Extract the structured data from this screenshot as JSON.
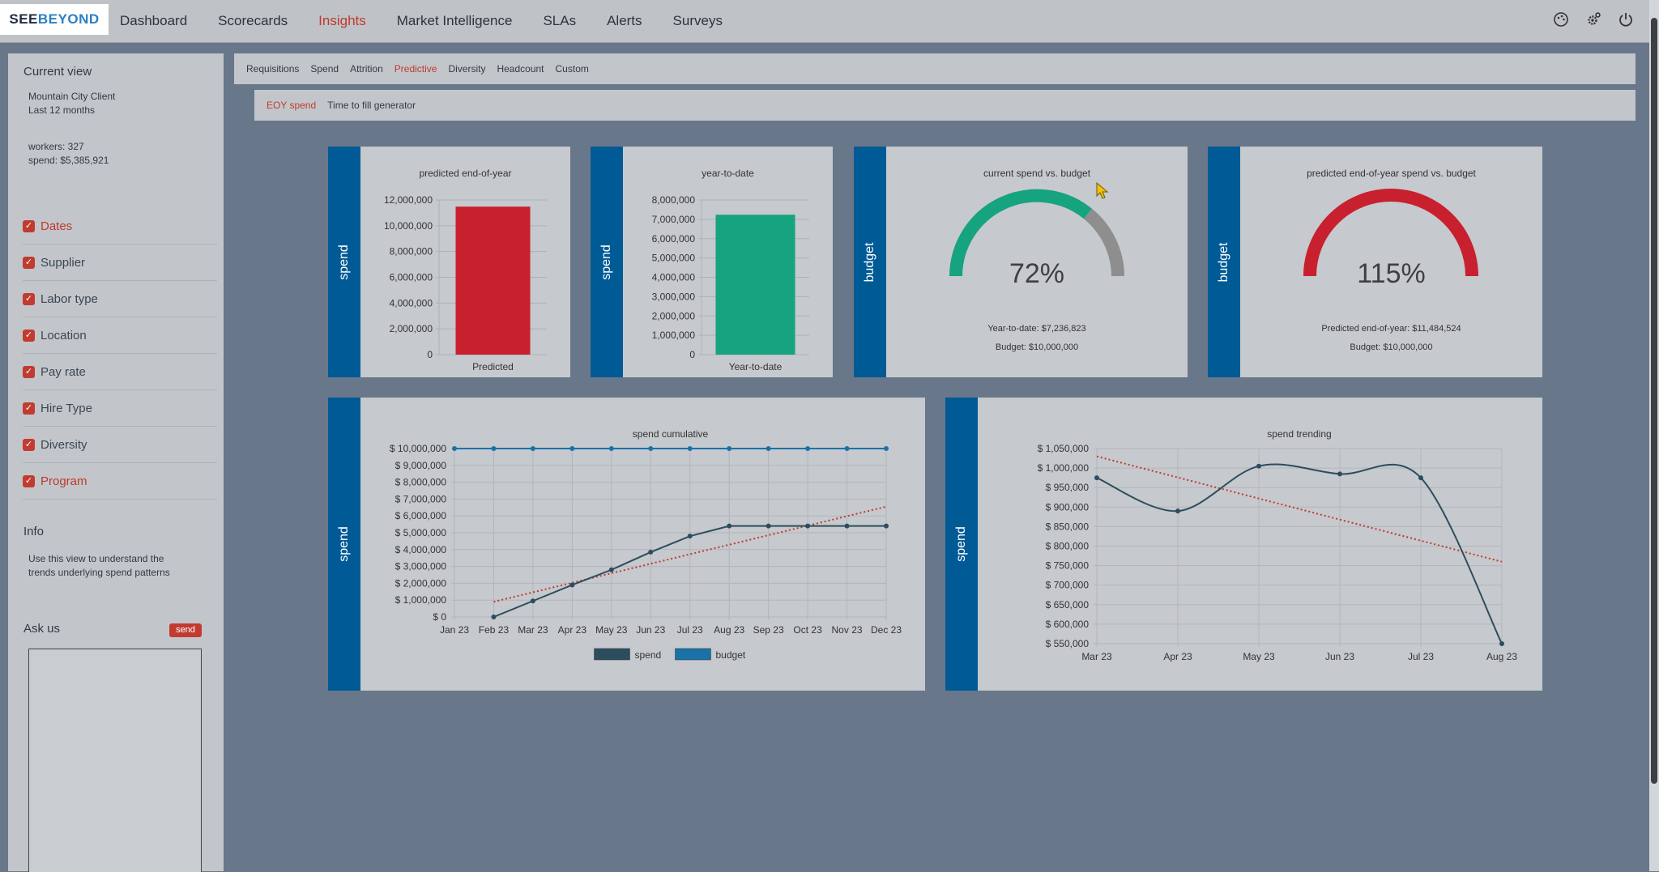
{
  "brand": {
    "see": "SEE",
    "beyond": "BEYOND"
  },
  "nav": {
    "items": [
      "Dashboard",
      "Scorecards",
      "Insights",
      "Market Intelligence",
      "SLAs",
      "Alerts",
      "Surveys"
    ],
    "active": "Insights",
    "icons": [
      "palette-icon",
      "settings-icon",
      "power-icon"
    ]
  },
  "sidebar": {
    "current_view_title": "Current view",
    "client": "Mountain City Client",
    "period": "Last 12 months",
    "workers": "workers: 327",
    "spend": "spend: $5,385,921",
    "filters": [
      {
        "label": "Dates",
        "highlight": true
      },
      {
        "label": "Supplier",
        "highlight": false
      },
      {
        "label": "Labor type",
        "highlight": false
      },
      {
        "label": "Location",
        "highlight": false
      },
      {
        "label": "Pay rate",
        "highlight": false
      },
      {
        "label": "Hire Type",
        "highlight": false
      },
      {
        "label": "Diversity",
        "highlight": false
      },
      {
        "label": "Program",
        "highlight": true
      }
    ],
    "info_title": "Info",
    "info_text_1": "Use this view to understand the",
    "info_text_2": "trends underlying spend patterns",
    "ask_title": "Ask us",
    "send_label": "send"
  },
  "tabs": {
    "primary": [
      "Requisitions",
      "Spend",
      "Attrition",
      "Predictive",
      "Diversity",
      "Headcount",
      "Custom"
    ],
    "primary_active": "Predictive",
    "secondary": [
      "EOY spend",
      "Time to fill generator"
    ],
    "secondary_active": "EOY spend"
  },
  "cards": {
    "predicted": {
      "strip": "spend",
      "title": "predicted end-of-year"
    },
    "ytd": {
      "strip": "spend",
      "title": "year-to-date"
    },
    "current_budget": {
      "strip": "budget",
      "title": "current spend vs. budget",
      "value": "72%",
      "note1": "Year-to-date: $7,236,823",
      "note2": "Budget: $10,000,000"
    },
    "eoy_budget": {
      "strip": "budget",
      "title": "predicted end-of-year spend vs. budget",
      "value": "115%",
      "note1": "Predicted end-of-year: $11,484,524",
      "note2": "Budget: $10,000,000"
    },
    "cumulative": {
      "strip": "spend"
    },
    "trending": {
      "strip": "spend"
    }
  },
  "colors": {
    "brand_blue": "#005a96",
    "active_red": "#c0392b",
    "bar_red": "#c8202e",
    "bar_green": "#16a37f",
    "gauge_green": "#16a37f",
    "gauge_gray": "#8e8e8e",
    "gauge_red": "#c8202e",
    "line_spend": "#2c4d5e",
    "line_budget": "#1a72a8",
    "trend_dotted": "#c0392b"
  },
  "chart_data": [
    {
      "type": "bar",
      "title": "predicted end-of-year",
      "categories": [
        "Predicted"
      ],
      "values": [
        11484524
      ],
      "ylim": [
        0,
        12000000
      ],
      "yticks": [
        "12,000,000",
        "10,000,000",
        "8,000,000",
        "6,000,000",
        "4,000,000",
        "2,000,000",
        "0"
      ],
      "grid": true
    },
    {
      "type": "bar",
      "title": "year-to-date",
      "categories": [
        "Year-to-date"
      ],
      "values": [
        7236823
      ],
      "ylim": [
        0,
        8000000
      ],
      "yticks": [
        "8,000,000",
        "7,000,000",
        "6,000,000",
        "5,000,000",
        "4,000,000",
        "3,000,000",
        "2,000,000",
        "1,000,000",
        "0"
      ],
      "grid": true
    },
    {
      "type": "line",
      "title": "spend cumulative",
      "x": [
        "Jan 23",
        "Feb 23",
        "Mar 23",
        "Apr 23",
        "May 23",
        "Jun 23",
        "Jul 23",
        "Aug 23",
        "Sep 23",
        "Oct 23",
        "Nov 23",
        "Dec 23"
      ],
      "ylim": [
        0,
        10000000
      ],
      "yticks": [
        "$ 10,000,000",
        "$ 9,000,000",
        "$ 8,000,000",
        "$ 7,000,000",
        "$ 6,000,000",
        "$ 5,000,000",
        "$ 4,000,000",
        "$ 3,000,000",
        "$ 2,000,000",
        "$ 1,000,000",
        "$ 0"
      ],
      "series": [
        {
          "name": "spend",
          "values": [
            null,
            0,
            950000,
            1900000,
            2800000,
            3850000,
            4800000,
            5400000,
            5400000,
            5400000,
            5400000,
            5400000
          ]
        },
        {
          "name": "budget",
          "values": [
            10000000,
            10000000,
            10000000,
            10000000,
            10000000,
            10000000,
            10000000,
            10000000,
            10000000,
            10000000,
            10000000,
            10000000
          ]
        }
      ],
      "trendline": {
        "from": [
          1,
          900000
        ],
        "to": [
          11,
          6550000
        ]
      },
      "legend": "bottom",
      "grid": true
    },
    {
      "type": "line",
      "title": "spend trending",
      "x": [
        "Mar 23",
        "Apr 23",
        "May 23",
        "Jun 23",
        "Jul 23",
        "Aug 23"
      ],
      "ylim": [
        550000,
        1050000
      ],
      "yticks": [
        "$ 1,050,000",
        "$ 1,000,000",
        "$ 950,000",
        "$ 900,000",
        "$ 850,000",
        "$ 800,000",
        "$ 750,000",
        "$ 700,000",
        "$ 650,000",
        "$ 600,000",
        "$ 550,000"
      ],
      "series": [
        {
          "values": [
            975000,
            890000,
            1005000,
            985000,
            975000,
            550000
          ]
        }
      ],
      "trendline": {
        "from": [
          0,
          1030000
        ],
        "to": [
          5,
          760000
        ]
      },
      "grid": true
    }
  ]
}
